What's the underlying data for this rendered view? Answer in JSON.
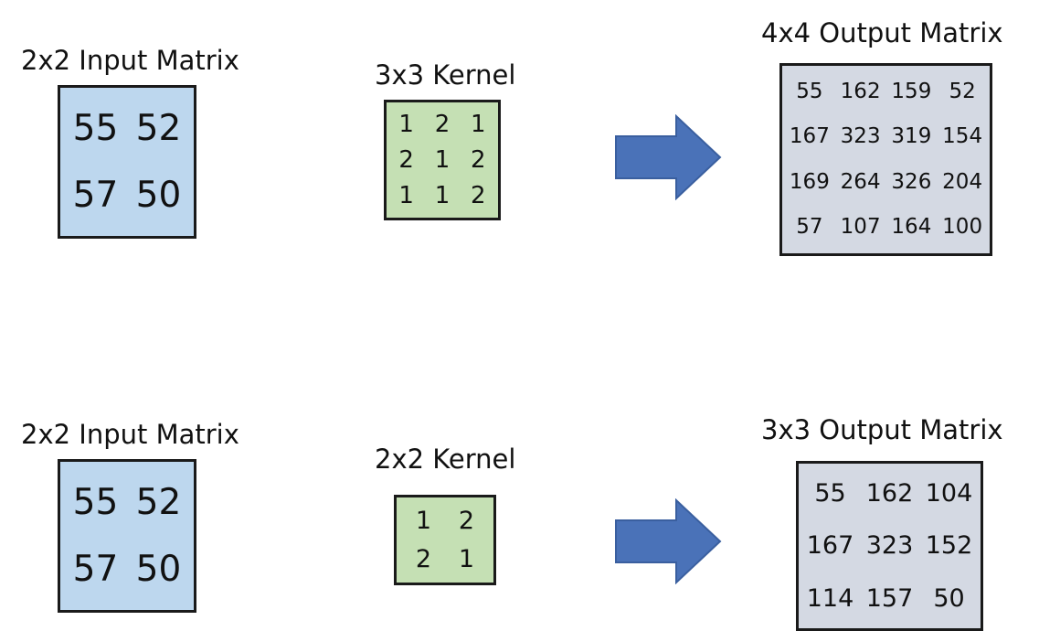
{
  "top": {
    "input": {
      "title": "2x2 Input Matrix",
      "rows": [
        [
          "55",
          "52"
        ],
        [
          "57",
          "50"
        ]
      ]
    },
    "kernel": {
      "title": "3x3 Kernel",
      "rows": [
        [
          "1",
          "2",
          "1"
        ],
        [
          "2",
          "1",
          "2"
        ],
        [
          "1",
          "1",
          "2"
        ]
      ]
    },
    "output": {
      "title": "4x4 Output Matrix",
      "rows": [
        [
          "55",
          "162",
          "159",
          "52"
        ],
        [
          "167",
          "323",
          "319",
          "154"
        ],
        [
          "169",
          "264",
          "326",
          "204"
        ],
        [
          "57",
          "107",
          "164",
          "100"
        ]
      ]
    }
  },
  "bottom": {
    "input": {
      "title": "2x2 Input Matrix",
      "rows": [
        [
          "55",
          "52"
        ],
        [
          "57",
          "50"
        ]
      ]
    },
    "kernel": {
      "title": "2x2 Kernel",
      "rows": [
        [
          "1",
          "2"
        ],
        [
          "2",
          "1"
        ]
      ]
    },
    "output": {
      "title": "3x3 Output Matrix",
      "rows": [
        [
          "55",
          "162",
          "104"
        ],
        [
          "167",
          "323",
          "152"
        ],
        [
          "114",
          "157",
          "50"
        ]
      ]
    }
  },
  "colors": {
    "input": "#bdd7ee",
    "kernel": "#c5e0b4",
    "output": "#d4d9e3",
    "arrow": "#4a72b8",
    "arrow_border": "#3a5f9f"
  },
  "icons": {
    "arrow": "right-arrow-icon"
  }
}
